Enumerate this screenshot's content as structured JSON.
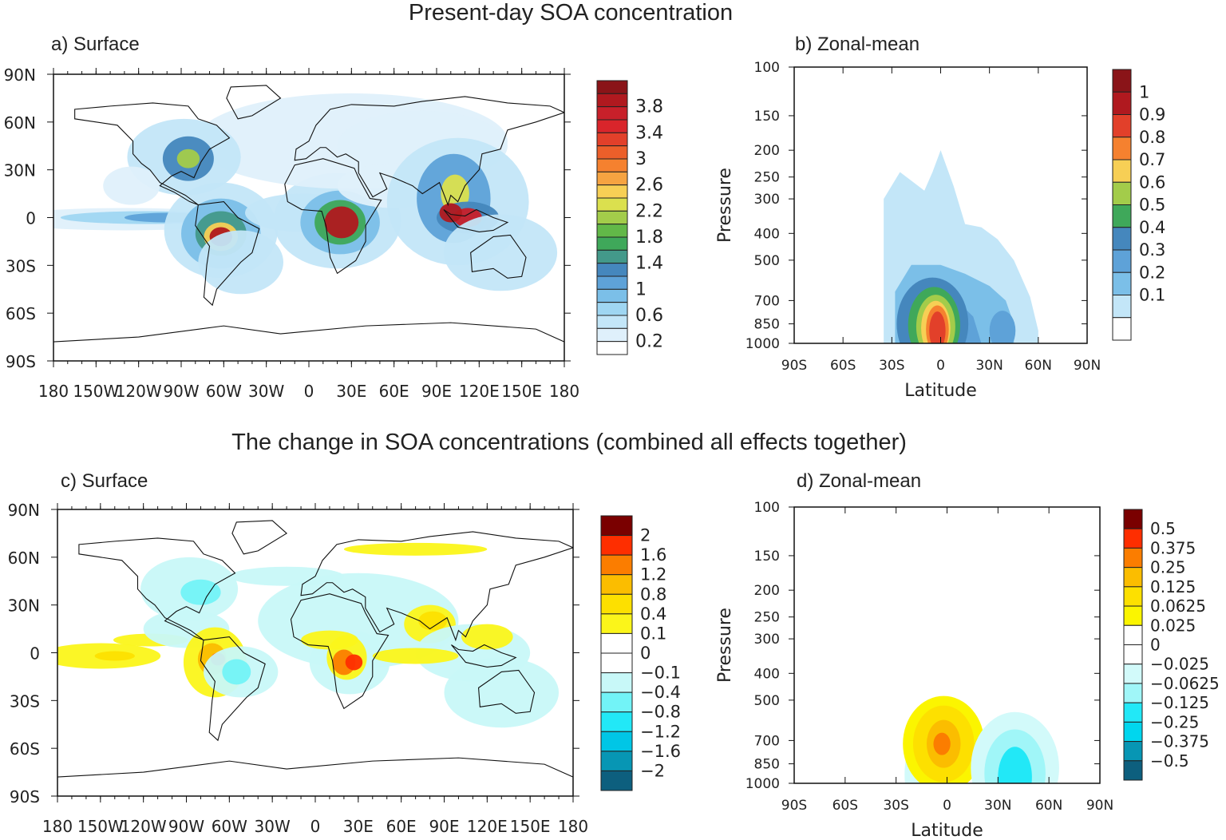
{
  "titles": {
    "top": "Present-day SOA concentration",
    "bottom": "The change in SOA concentrations (combined all effects together)"
  },
  "chart_data": [
    {
      "id": "a",
      "type": "heatmap",
      "label": "a) Surface",
      "xticks": [
        "180",
        "150W",
        "120W",
        "90W",
        "60W",
        "30W",
        "0",
        "30E",
        "60E",
        "90E",
        "120E",
        "150E",
        "180"
      ],
      "yticks": [
        "90N",
        "60N",
        "30N",
        "0",
        "30S",
        "60S",
        "90S"
      ],
      "colorbar": {
        "labels": [
          "3.8",
          "3.4",
          "3",
          "2.6",
          "2.2",
          "1.8",
          "1.4",
          "1",
          "0.6",
          "0.2"
        ],
        "levels": [
          0.2,
          0.4,
          0.6,
          0.8,
          1,
          1.2,
          1.4,
          1.6,
          1.8,
          2,
          2.2,
          2.4,
          2.6,
          2.8,
          3,
          3.2,
          3.4,
          3.6,
          3.8,
          4.0
        ],
        "colors": [
          "#ffffff",
          "#dff0fb",
          "#c3e6f8",
          "#9fd6f2",
          "#7bbfe8",
          "#5ea2d8",
          "#4587bd",
          "#43998a",
          "#3fa85a",
          "#62b848",
          "#a3cc4a",
          "#dbe04e",
          "#f7cf55",
          "#f6a341",
          "#f5812f",
          "#ec5f2a",
          "#e2402a",
          "#d9252b",
          "#c8202a",
          "#b0191f",
          "#8a1418"
        ]
      },
      "regions": [
        "Amazon",
        "Central Africa",
        "Southeast Asia",
        "Eastern US",
        "Tropical Pacific outflow"
      ]
    },
    {
      "id": "b",
      "type": "heatmap",
      "label": "b) Zonal-mean",
      "xlabel": "Latitude",
      "ylabel": "Pressure",
      "xticks": [
        "90S",
        "60S",
        "30S",
        "0",
        "30N",
        "60N",
        "90N"
      ],
      "yticks": [
        100,
        150,
        200,
        250,
        300,
        400,
        500,
        700,
        850,
        1000
      ],
      "y_scale": "log",
      "colorbar": {
        "labels": [
          "1",
          "0.9",
          "0.8",
          "0.7",
          "0.6",
          "0.5",
          "0.4",
          "0.3",
          "0.2",
          "0.1"
        ],
        "levels": [
          0.1,
          0.2,
          0.3,
          0.4,
          0.5,
          0.6,
          0.7,
          0.8,
          0.9,
          1
        ],
        "colors": [
          "#ffffff",
          "#c3e6f8",
          "#7bbfe8",
          "#5ea2d8",
          "#4587bd",
          "#3fa85a",
          "#a3cc4a",
          "#f7cf55",
          "#f5812f",
          "#e2402a",
          "#b0191f",
          "#8a1418"
        ]
      }
    },
    {
      "id": "c",
      "type": "heatmap",
      "label": "c) Surface",
      "xticks": [
        "180",
        "150W",
        "120W",
        "90W",
        "60W",
        "30W",
        "0",
        "30E",
        "60E",
        "90E",
        "120E",
        "150E",
        "180"
      ],
      "yticks": [
        "90N",
        "60N",
        "30N",
        "0",
        "30S",
        "60S",
        "90S"
      ],
      "colorbar": {
        "labels": [
          "2",
          "1.6",
          "1.2",
          "0.8",
          "0.4",
          "0.1",
          "0",
          "−0.1",
          "−0.4",
          "−0.8",
          "−1.2",
          "−1.6",
          "−2"
        ],
        "levels": [
          -2,
          -1.6,
          -1.2,
          -0.8,
          -0.4,
          -0.1,
          0,
          0.1,
          0.4,
          0.8,
          1.2,
          1.6,
          2
        ],
        "colors": [
          "#0d5f7e",
          "#0796b4",
          "#00c6e6",
          "#22e8f7",
          "#72f3f7",
          "#c8f8f8",
          "#ffffff",
          "#ffffff",
          "#fbf51a",
          "#fde000",
          "#fbbd00",
          "#fb7d00",
          "#fe2e00",
          "#7a0000"
        ]
      }
    },
    {
      "id": "d",
      "type": "heatmap",
      "label": "d) Zonal-mean",
      "xlabel": "Latitude",
      "ylabel": "Pressure",
      "xticks": [
        "90S",
        "60S",
        "30S",
        "0",
        "30N",
        "60N",
        "90N"
      ],
      "yticks": [
        100,
        150,
        200,
        250,
        300,
        400,
        500,
        700,
        850,
        1000
      ],
      "y_scale": "log",
      "colorbar": {
        "labels": [
          "0.5",
          "0.375",
          "0.25",
          "0.125",
          "0.0625",
          "0.025",
          "0",
          "−0.025",
          "−0.0625",
          "−0.125",
          "−0.25",
          "−0.375",
          "−0.5"
        ],
        "levels": [
          -0.5,
          -0.375,
          -0.25,
          -0.125,
          -0.0625,
          -0.025,
          0,
          0.025,
          0.0625,
          0.125,
          0.25,
          0.375,
          0.5
        ],
        "colors": [
          "#0d5f7e",
          "#0796b4",
          "#00d6ee",
          "#22e8f7",
          "#a0f6f8",
          "#d2fafa",
          "#ffffff",
          "#ffffff",
          "#fbf500",
          "#fde000",
          "#fbbd00",
          "#fb7d00",
          "#fe2e00",
          "#7a0000"
        ]
      }
    }
  ]
}
